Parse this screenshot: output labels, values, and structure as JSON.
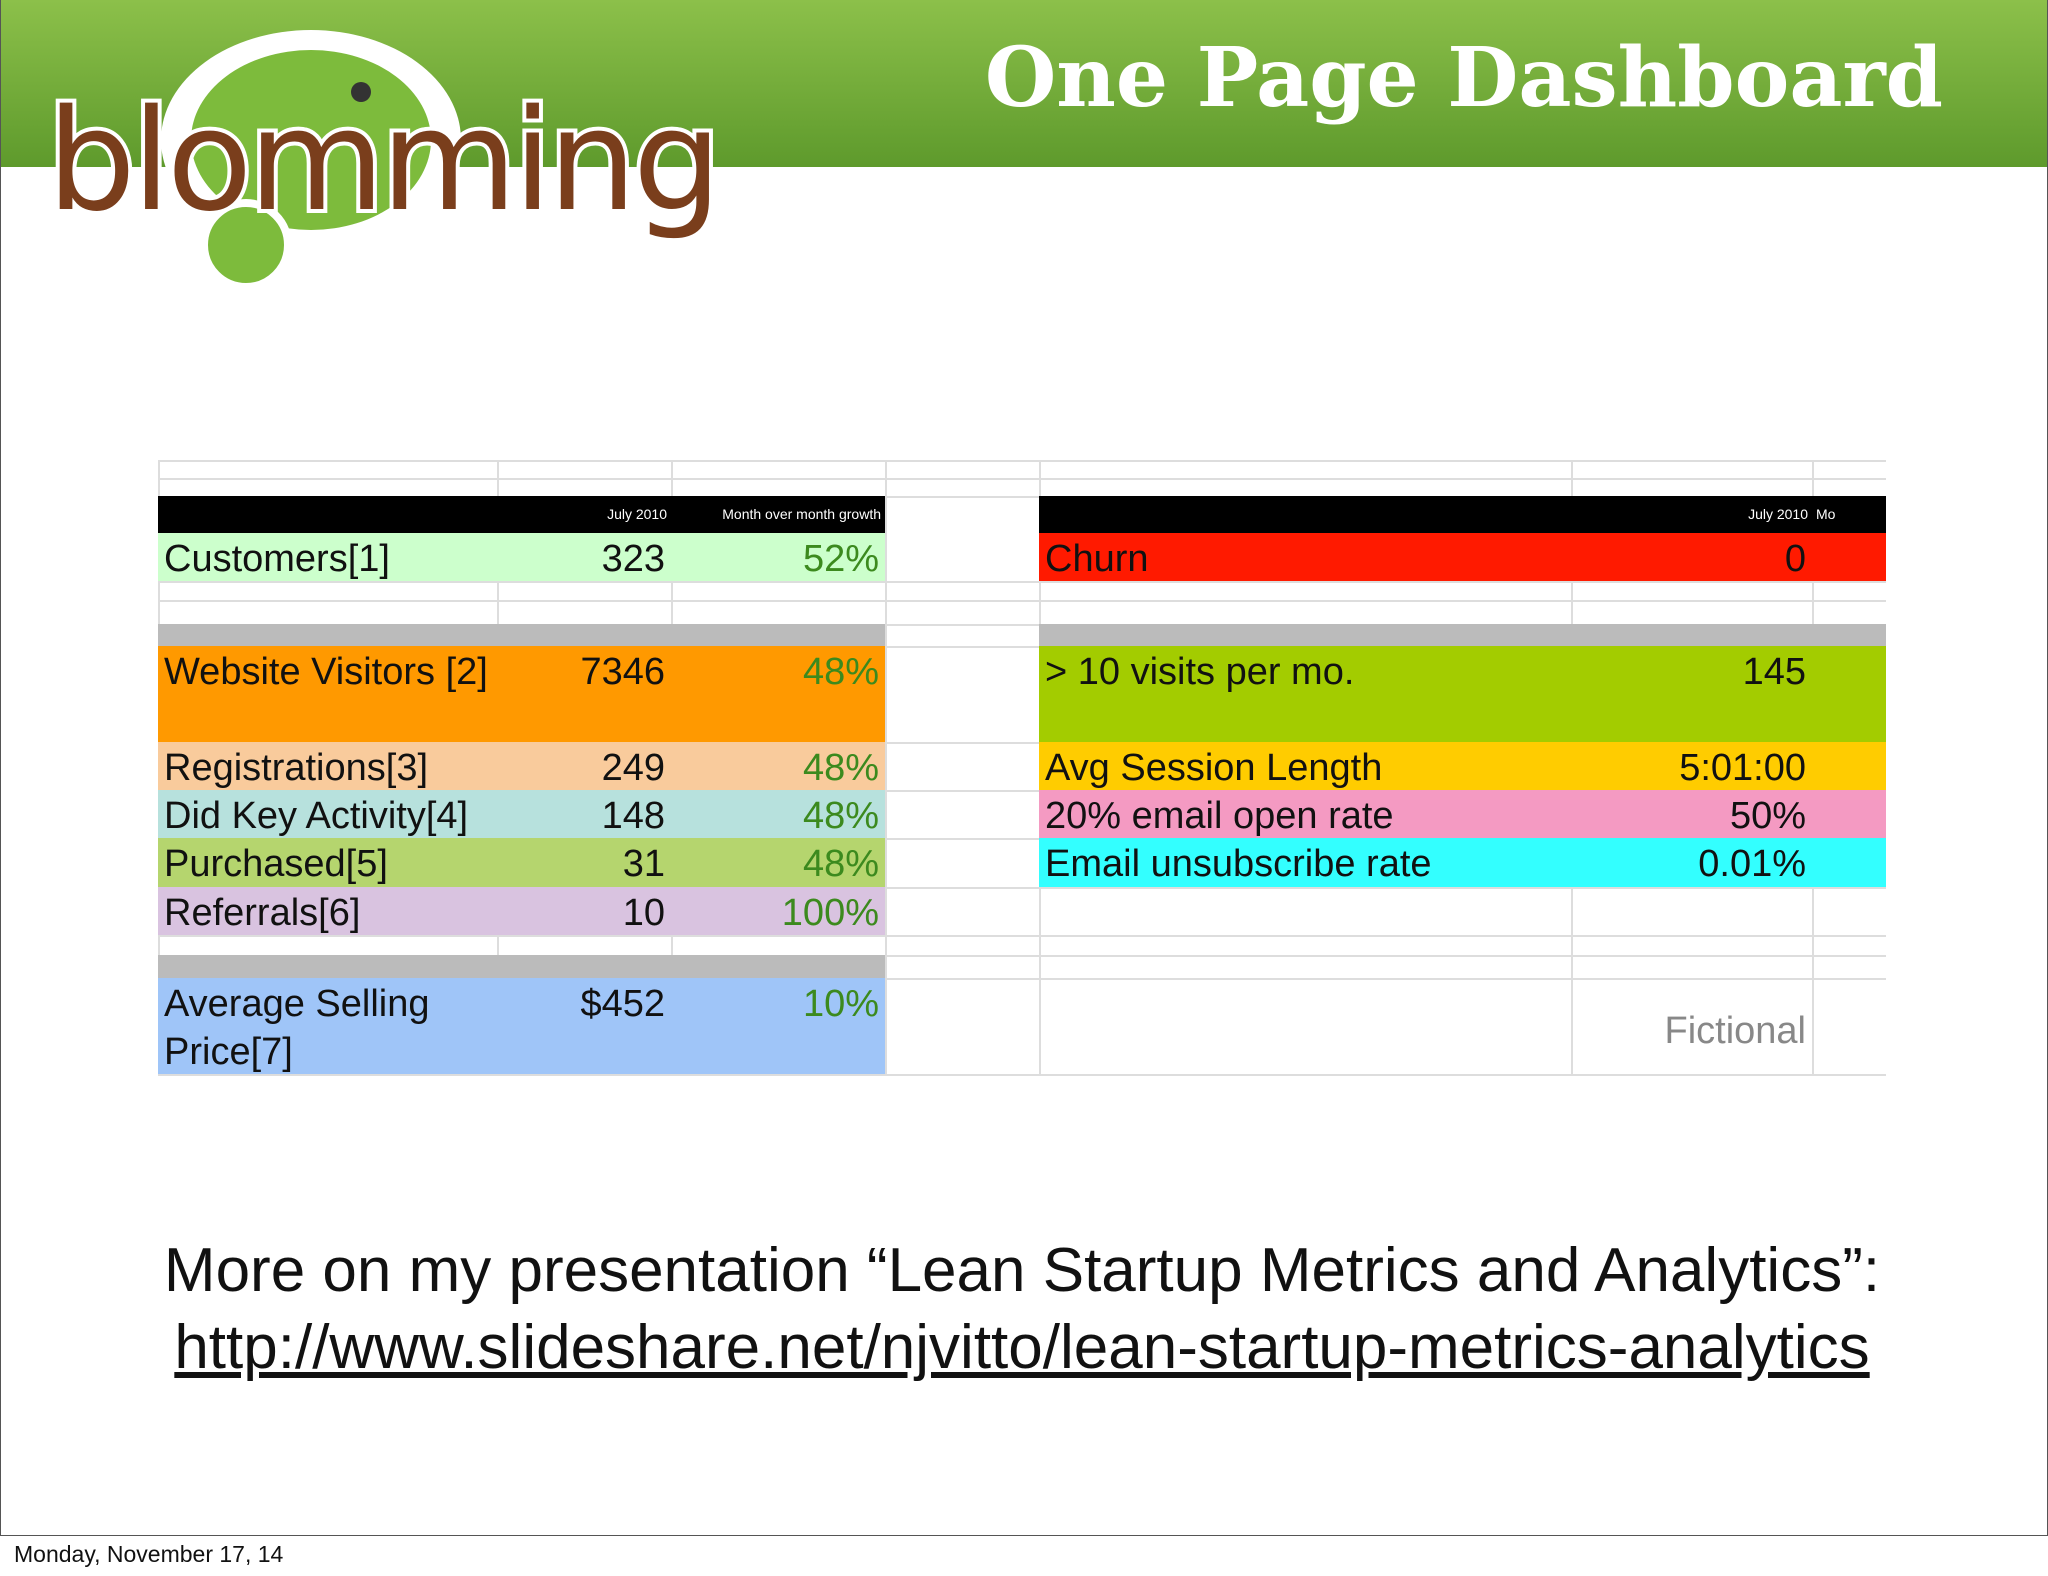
{
  "header": {
    "title": "One Page Dashboard",
    "logo": "blomming"
  },
  "table_left": {
    "headers": [
      "July 2010",
      "Month over month growth"
    ],
    "rows": [
      {
        "label": "Customers[1]",
        "value": "323",
        "growth": "52%"
      },
      {
        "label": "Website Visitors [2]",
        "value": "7346",
        "growth": "48%"
      },
      {
        "label": "Registrations[3]",
        "value": "249",
        "growth": "48%"
      },
      {
        "label": "Did Key Activity[4]",
        "value": "148",
        "growth": "48%"
      },
      {
        "label": "Purchased[5]",
        "value": "31",
        "growth": "48%"
      },
      {
        "label": "Referrals[6]",
        "value": "10",
        "growth": "100%"
      },
      {
        "label": "Average Selling Price[7]",
        "value": "$452",
        "growth": "10%"
      }
    ]
  },
  "table_right": {
    "headers": [
      "July 2010",
      "Mo"
    ],
    "rows": [
      {
        "label": "Churn",
        "value": "0"
      },
      {
        "label": "> 10 visits per mo.",
        "value": "145"
      },
      {
        "label": "Avg Session Length",
        "value": "5:01:00"
      },
      {
        "label": "20% email open rate",
        "value": "50%"
      },
      {
        "label": "Email unsubscribe rate",
        "value": "0.01%"
      }
    ],
    "note": "Fictional"
  },
  "footer": {
    "text": "More on my presentation “Lean Startup Metrics and Analytics”:",
    "link": "http://www.slideshare.net/njvitto/lean-startup-metrics-analytics",
    "date": "Monday, November 17, 14"
  }
}
